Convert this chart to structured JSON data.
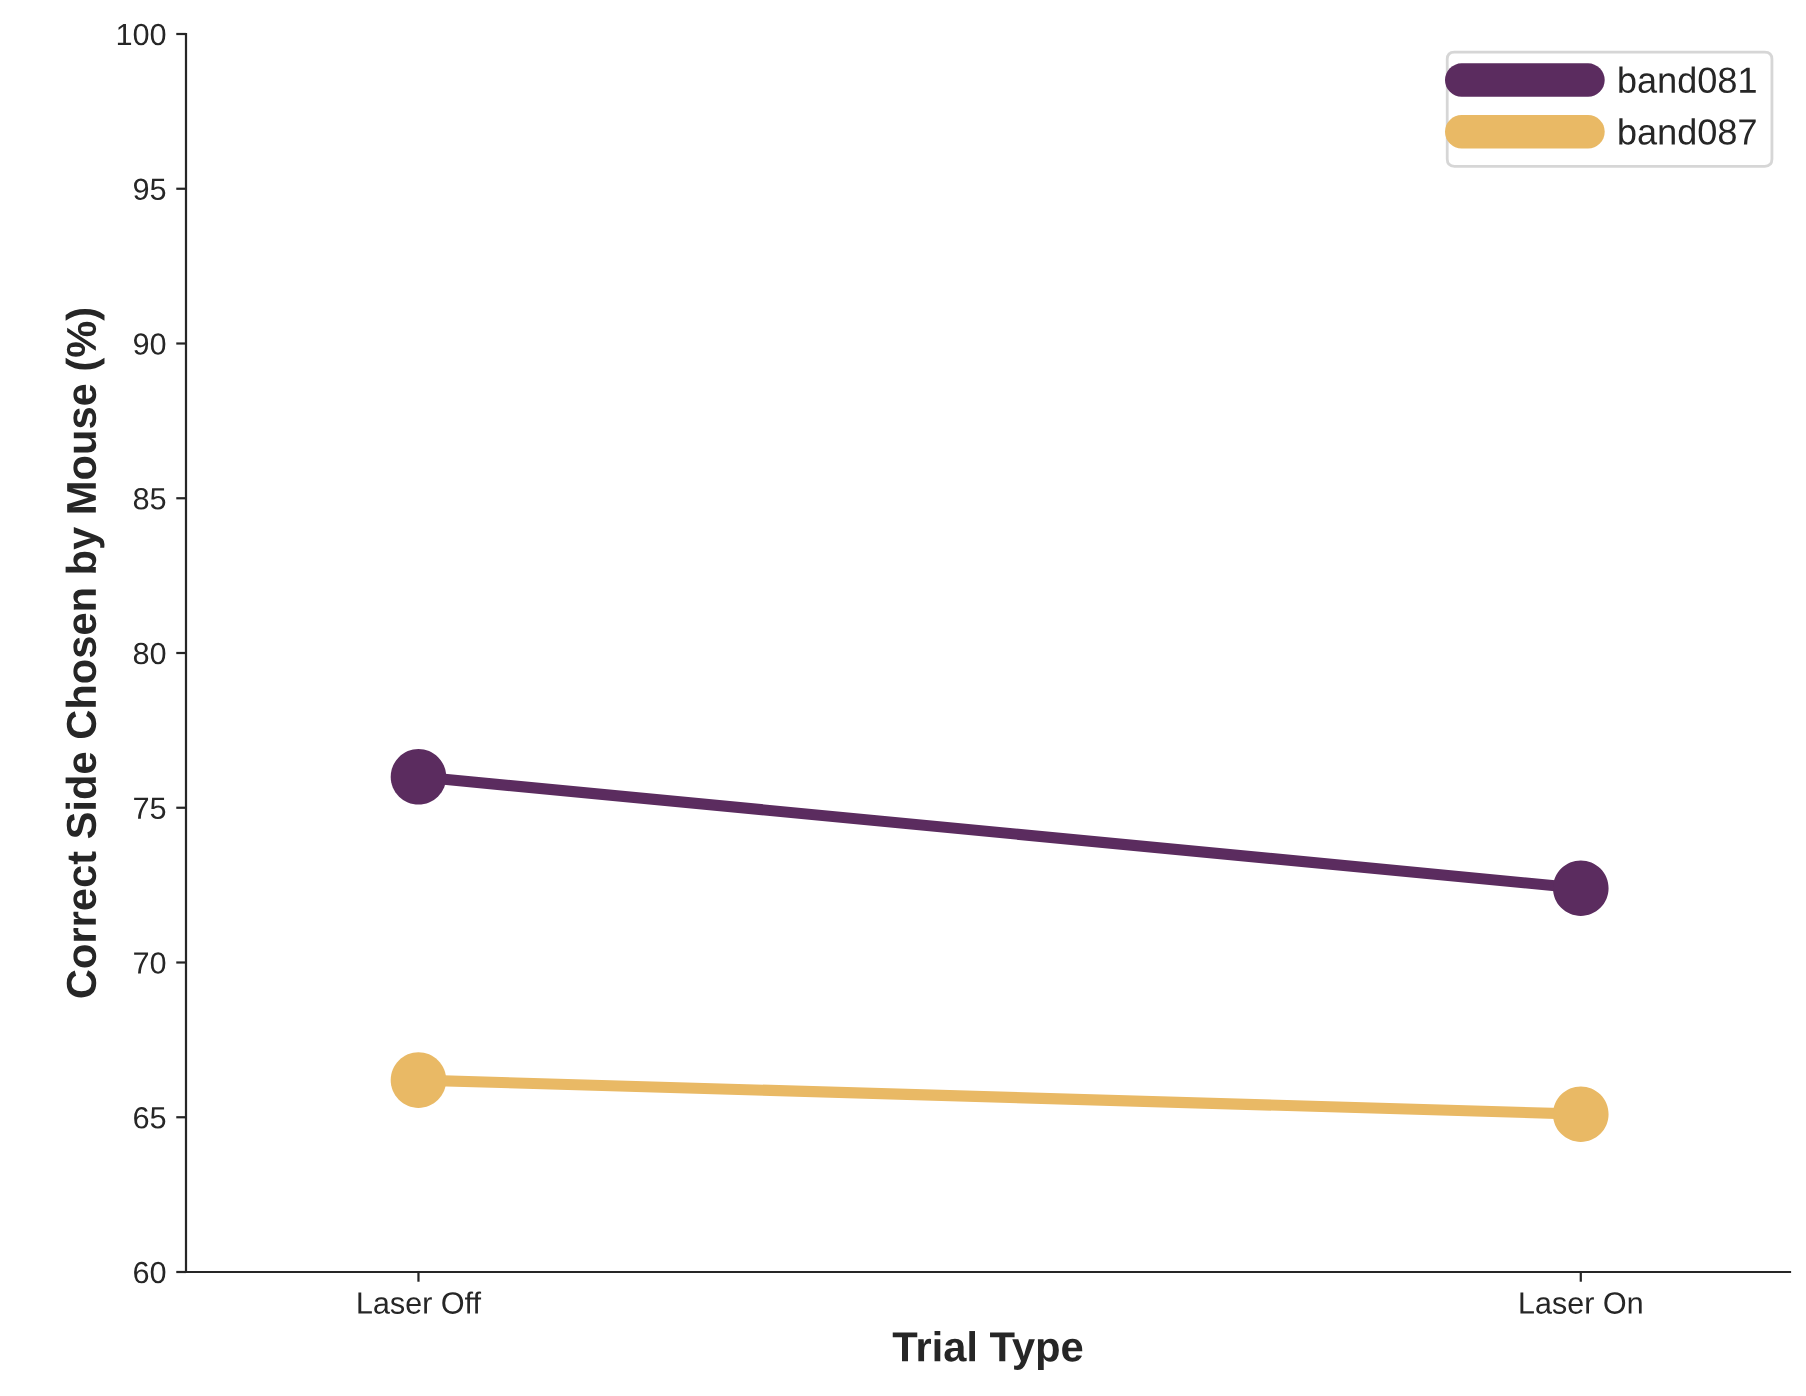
{
  "chart_data": {
    "type": "line",
    "xlabel": "Trial Type",
    "ylabel": "Correct Side Chosen by Mouse (%)",
    "categories": [
      "Laser Off",
      "Laser On"
    ],
    "series": [
      {
        "name": "band081",
        "color": "#5b2c5f",
        "values": [
          76.0,
          72.4
        ]
      },
      {
        "name": "band087",
        "color": "#e9b965",
        "values": [
          66.2,
          65.1
        ]
      }
    ],
    "ylim": [
      60,
      100
    ],
    "yticks": [
      60,
      65,
      70,
      75,
      80,
      85,
      90,
      95,
      100
    ],
    "marker": "circle",
    "line_style": "solid",
    "legend": "top right",
    "grid": false
  }
}
